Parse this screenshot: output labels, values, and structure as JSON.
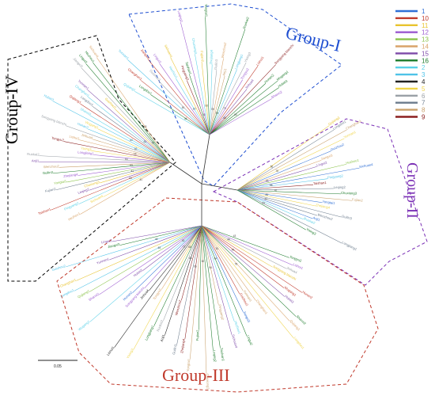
{
  "groups": [
    {
      "id": "I",
      "label": "Group-I",
      "color": "#1f4fd1"
    },
    {
      "id": "II",
      "label": "Group-II",
      "color": "#7a2fb5"
    },
    {
      "id": "III",
      "label": "Group-III",
      "color": "#c0392b"
    },
    {
      "id": "IV",
      "label": "Group-IV",
      "color": "#000000"
    }
  ],
  "legend": [
    {
      "label": "1",
      "color": "#2f6fd6"
    },
    {
      "label": "10",
      "color": "#c0392b"
    },
    {
      "label": "11",
      "color": "#e8c32e"
    },
    {
      "label": "12",
      "color": "#9b59d0"
    },
    {
      "label": "13",
      "color": "#8bc34a"
    },
    {
      "label": "14",
      "color": "#d9a46a"
    },
    {
      "label": "15",
      "color": "#7d4aa8"
    },
    {
      "label": "16",
      "color": "#1b7a2a"
    },
    {
      "label": "2",
      "color": "#5ad1e8"
    },
    {
      "label": "3",
      "color": "#4fc3e8"
    },
    {
      "label": "4",
      "color": "#222222"
    },
    {
      "label": "5",
      "color": "#f0d54a"
    },
    {
      "label": "6",
      "color": "#9aa0a6"
    },
    {
      "label": "7",
      "color": "#6b7b8c"
    },
    {
      "label": "8",
      "color": "#c9a06a"
    },
    {
      "label": "9",
      "color": "#8b2020"
    }
  ],
  "scale_label": "0.05",
  "leaf_samples": [
    "Qujiang1",
    "Longdou1",
    "Changhan1",
    "Yunnan1",
    "Guizhou2",
    "Jiangxi3",
    "Lingui2",
    "Hezhou1",
    "Sichuan4",
    "Pingyang2",
    "Taishan1",
    "Leqing2",
    "Chuxiong3",
    "Fujian2",
    "Yongtai1",
    "Zhejiang4",
    "Guilin3",
    "Wenzhou2",
    "Anji1",
    "Ruokai2",
    "Longjiang1",
    "Yixing3",
    "Tongyu2",
    "Lishui1",
    "Jinhua4",
    "Songyang bianzhi",
    "Hunan2",
    "Wugang1",
    "Hubei3",
    "Shanxi2"
  ]
}
